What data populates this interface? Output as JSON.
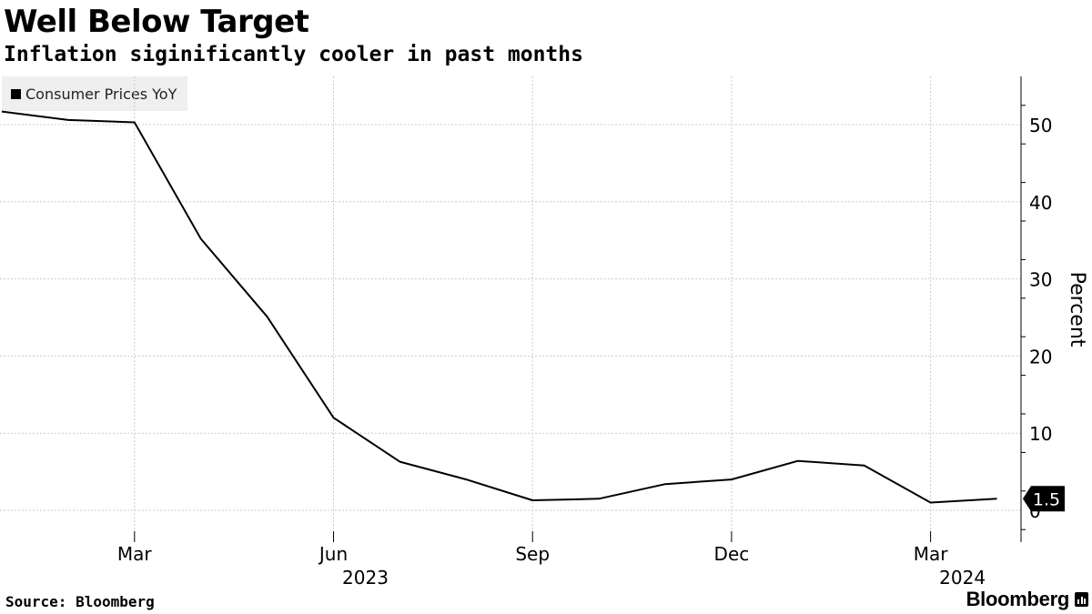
{
  "header": {
    "title": "Well Below Target",
    "subtitle": "Inflation siginificantly cooler in past months"
  },
  "footer": {
    "source": "Source: Bloomberg",
    "brand": "Bloomberg"
  },
  "colors": {
    "line": "#000000",
    "grid": "#cccccc",
    "legend_bg": "#efefef"
  },
  "chart_data": {
    "type": "line",
    "title": "Well Below Target",
    "subtitle": "Inflation siginificantly cooler in past months",
    "ylabel": "Percent",
    "ylim": [
      -4,
      56
    ],
    "y_ticks": [
      0,
      10,
      20,
      30,
      40,
      50
    ],
    "y_axis_position": "right",
    "grid": true,
    "legend_placement": "top-left",
    "x": [
      "2023-01",
      "2023-02",
      "2023-03",
      "2023-04",
      "2023-05",
      "2023-06",
      "2023-07",
      "2023-08",
      "2023-09",
      "2023-10",
      "2023-11",
      "2023-12",
      "2024-01",
      "2024-02",
      "2024-03",
      "2024-04"
    ],
    "x_tick_labels": [
      {
        "x": "2023-03",
        "label": "Mar"
      },
      {
        "x": "2023-06",
        "label": "Jun"
      },
      {
        "x": "2023-09",
        "label": "Sep"
      },
      {
        "x": "2023-12",
        "label": "Dec"
      },
      {
        "x": "2024-03",
        "label": "Mar"
      }
    ],
    "year_labels": [
      {
        "x": "2023-06",
        "label": "2023"
      },
      {
        "x": "2024-03",
        "label": "2024"
      }
    ],
    "series": [
      {
        "name": "Consumer Prices YoY",
        "values": [
          51.7,
          50.6,
          50.3,
          35.2,
          25.1,
          12.0,
          6.3,
          4.0,
          1.3,
          1.5,
          3.4,
          4.0,
          6.4,
          5.8,
          1.0,
          1.5
        ]
      }
    ],
    "last_value_label": "1.5"
  }
}
